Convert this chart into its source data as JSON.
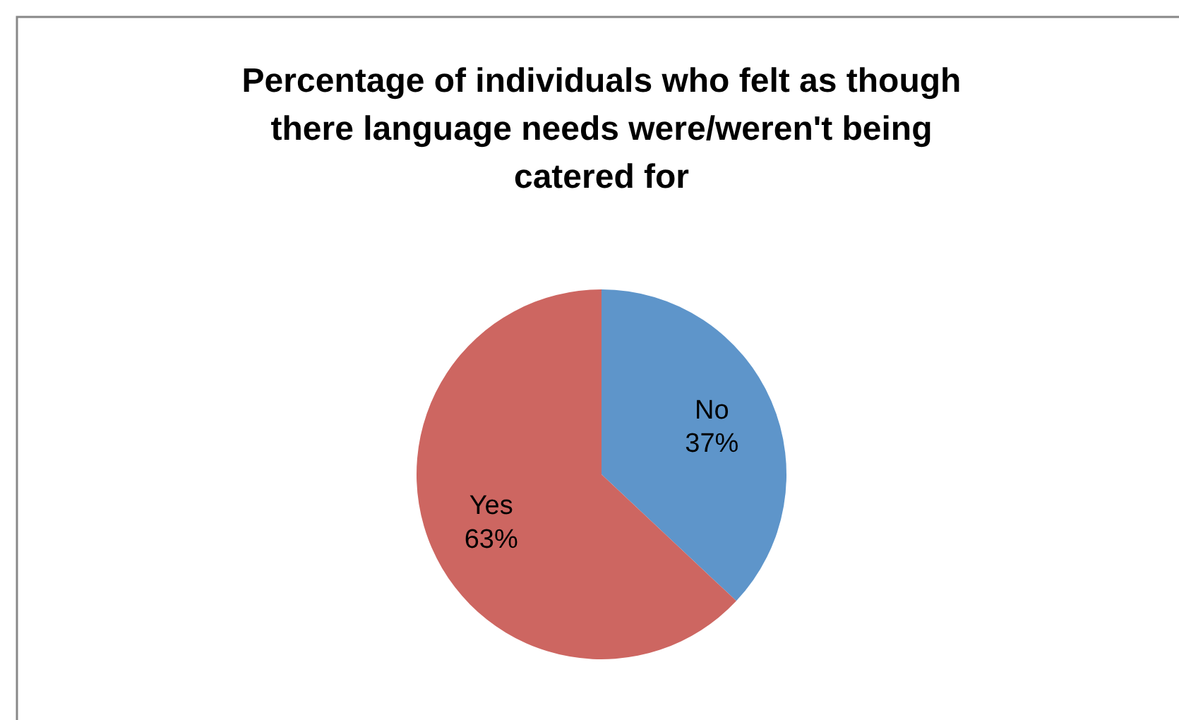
{
  "chart_data": {
    "type": "pie",
    "title": "Percentage of individuals who felt as though there language needs were/weren't being catered for",
    "categories": [
      "No",
      "Yes"
    ],
    "values": [
      37,
      63
    ],
    "colors": [
      "#5e95ca",
      "#cd6661"
    ],
    "value_labels": [
      "37%",
      "63%"
    ]
  }
}
